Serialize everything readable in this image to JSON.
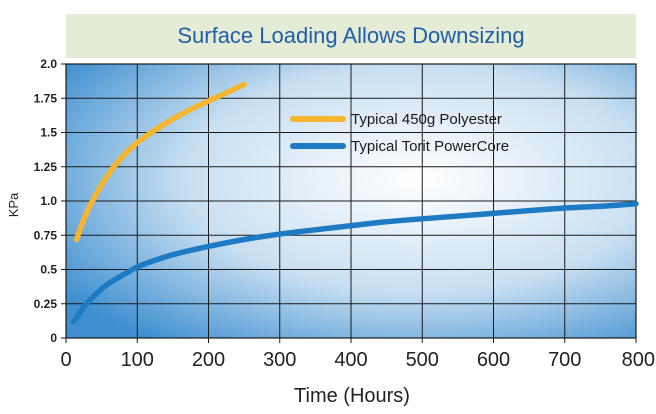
{
  "chart_data": {
    "type": "line",
    "title": "Surface Loading Allows Downsizing",
    "xlabel": "Time (Hours)",
    "ylabel": "KPa",
    "xlim": [
      0,
      800
    ],
    "ylim": [
      0,
      2.0
    ],
    "x_ticks": [
      "0",
      "100",
      "200",
      "300",
      "400",
      "500",
      "600",
      "700",
      "800"
    ],
    "y_ticks": [
      "0",
      "0.25",
      "0.5",
      "0.75",
      "1.0",
      "1.25",
      "1.5",
      "1.75",
      "2.0"
    ],
    "grid": true,
    "legend_position": "top-right",
    "series": [
      {
        "name": "Typical 450g Polyester",
        "color": "#f5b52e",
        "x": [
          15,
          20,
          30,
          40,
          50,
          60,
          70,
          80,
          100,
          125,
          150,
          175,
          200,
          225,
          250
        ],
        "y": [
          0.72,
          0.8,
          0.93,
          1.03,
          1.12,
          1.2,
          1.27,
          1.33,
          1.43,
          1.52,
          1.6,
          1.67,
          1.73,
          1.79,
          1.85
        ]
      },
      {
        "name": "Typical Torit PowerCore",
        "color": "#1f7ac4",
        "x": [
          10,
          15,
          20,
          30,
          40,
          50,
          60,
          70,
          80,
          90,
          100,
          120,
          150,
          200,
          250,
          300,
          350,
          400,
          450,
          500,
          550,
          600,
          650,
          700,
          750,
          800
        ],
        "y": [
          0.12,
          0.15,
          0.19,
          0.26,
          0.31,
          0.36,
          0.4,
          0.43,
          0.46,
          0.49,
          0.52,
          0.56,
          0.61,
          0.67,
          0.72,
          0.76,
          0.79,
          0.82,
          0.85,
          0.87,
          0.89,
          0.91,
          0.93,
          0.95,
          0.96,
          0.98
        ]
      }
    ]
  }
}
